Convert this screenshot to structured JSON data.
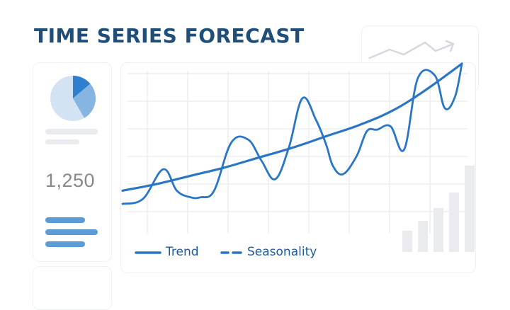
{
  "header": {
    "title": "TIME SERIES FORECAST"
  },
  "kpi": {
    "value": "1,250"
  },
  "colors": {
    "title": "#1f4e79",
    "line": "#2a76c6",
    "pie_dark": "#2f7fcf",
    "pie_mid": "#86b5e2",
    "pie_light": "#d3e3f3",
    "bars": "#e9ebee"
  },
  "legend": [
    {
      "label": "Trend",
      "style": "solid"
    },
    {
      "label": "Seasonality",
      "style": "dashed"
    }
  ],
  "chart_data": {
    "type": "line",
    "title": "TIME SERIES FORECAST",
    "xlabel": "",
    "ylabel": "",
    "grid": true,
    "legend_position": "bottom-left",
    "xlim": [
      0,
      100
    ],
    "ylim": [
      0,
      100
    ],
    "series": [
      {
        "name": "Trend",
        "style": "solid",
        "x": [
          0,
          10,
          20,
          30,
          40,
          50,
          60,
          70,
          80,
          90,
          100
        ],
        "y": [
          23,
          27,
          32,
          37,
          43,
          49,
          56,
          63,
          72,
          85,
          100
        ]
      },
      {
        "name": "Seasonality",
        "style": "dashed",
        "x": [
          0,
          6,
          12,
          16,
          20,
          23,
          27,
          32,
          37,
          41,
          45,
          49,
          53,
          57,
          60,
          62,
          65,
          69,
          72,
          75,
          79,
          83,
          87,
          92,
          95,
          98,
          100
        ],
        "y": [
          15,
          18,
          36,
          23,
          19,
          19,
          23,
          52,
          54,
          41,
          30,
          49,
          79,
          66,
          51,
          38,
          33,
          44,
          59,
          60,
          62,
          48,
          91,
          93,
          73,
          80,
          100
        ]
      }
    ]
  }
}
